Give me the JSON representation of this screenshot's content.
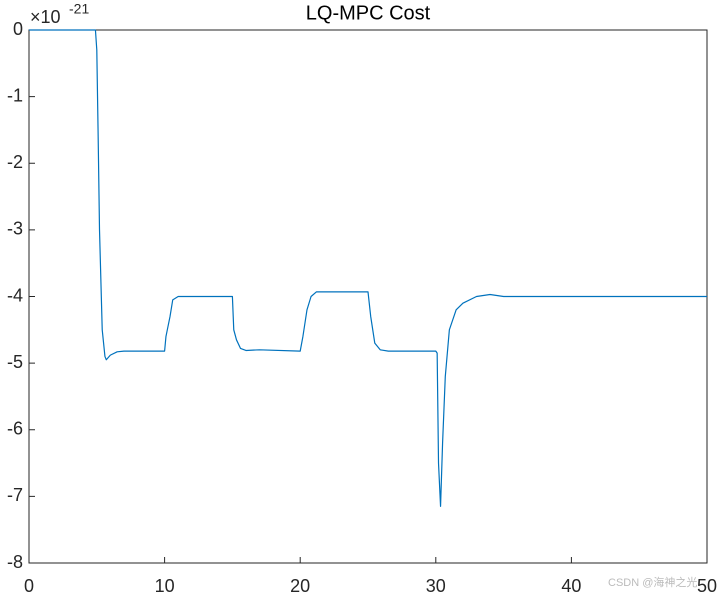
{
  "chart_data": {
    "type": "line",
    "title": "LQ-MPC Cost",
    "y_exponent": {
      "base": "×10",
      "power": "-21"
    },
    "watermark": "CSDN @海神之光",
    "x": [
      0,
      4.9,
      5.0,
      5.1,
      5.2,
      5.4,
      5.6,
      5.7,
      6.0,
      6.5,
      7.0,
      10.0,
      10.1,
      10.2,
      10.4,
      10.6,
      11.0,
      15.0,
      15.1,
      15.3,
      15.6,
      16.0,
      17.0,
      20.0,
      20.2,
      20.5,
      20.8,
      21.2,
      25.0,
      25.2,
      25.5,
      25.9,
      26.5,
      30.0,
      30.1,
      30.2,
      30.35,
      30.5,
      30.7,
      31.0,
      31.5,
      32.0,
      33.0,
      34.0,
      35.0,
      50.0
    ],
    "series": [
      {
        "name": "LQ-MPC Cost",
        "color": "#0072BD",
        "values": [
          0,
          0,
          -0.3,
          -1.6,
          -3.0,
          -4.5,
          -4.9,
          -4.95,
          -4.88,
          -4.83,
          -4.82,
          -4.82,
          -4.6,
          -4.5,
          -4.3,
          -4.05,
          -4.0,
          -4.0,
          -4.5,
          -4.65,
          -4.78,
          -4.81,
          -4.8,
          -4.82,
          -4.6,
          -4.2,
          -4.0,
          -3.93,
          -3.93,
          -4.3,
          -4.7,
          -4.8,
          -4.82,
          -4.82,
          -4.85,
          -6.5,
          -7.15,
          -6.2,
          -5.2,
          -4.5,
          -4.2,
          -4.1,
          -4.0,
          -3.97,
          -4.0,
          -4.0
        ]
      }
    ],
    "xlim": [
      0,
      50
    ],
    "xticks": [
      0,
      10,
      20,
      30,
      40,
      50
    ],
    "ylim": [
      -8,
      0
    ],
    "yticks": [
      -8,
      -7,
      -6,
      -5,
      -4,
      -3,
      -2,
      -1,
      0
    ],
    "grid": false
  }
}
